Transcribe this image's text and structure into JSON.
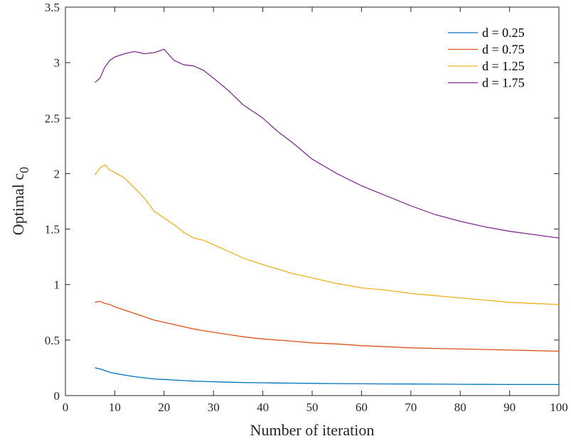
{
  "chart_data": {
    "type": "line",
    "xlabel": "Number of iteration",
    "ylabel": "Optimal c",
    "ylabel_subscript": "0",
    "xlim": [
      0,
      100
    ],
    "ylim": [
      0,
      3.5
    ],
    "xticks": [
      0,
      10,
      20,
      30,
      40,
      50,
      60,
      70,
      80,
      90,
      100
    ],
    "yticks": [
      0,
      0.5,
      1,
      1.5,
      2,
      2.5,
      3,
      3.5
    ],
    "ytick_labels": [
      "0",
      "0.5",
      "1",
      "1.5",
      "2",
      "2.5",
      "3",
      "3.5"
    ],
    "grid": false,
    "legend_position": "top-right",
    "x": [
      6,
      7,
      8,
      9,
      10,
      12,
      14,
      16,
      18,
      20,
      22,
      24,
      26,
      28,
      30,
      33,
      36,
      40,
      43,
      46,
      50,
      55,
      60,
      65,
      70,
      75,
      80,
      85,
      90,
      95,
      100
    ],
    "series": [
      {
        "name": "d = 0.25",
        "color": "#0072BD",
        "values": [
          0.25,
          0.24,
          0.225,
          0.21,
          0.2,
          0.185,
          0.17,
          0.16,
          0.15,
          0.145,
          0.14,
          0.135,
          0.13,
          0.128,
          0.125,
          0.12,
          0.118,
          0.115,
          0.113,
          0.112,
          0.11,
          0.108,
          0.106,
          0.105,
          0.104,
          0.103,
          0.102,
          0.101,
          0.1,
          0.1,
          0.1
        ]
      },
      {
        "name": "d = 0.75",
        "color": "#D95319",
        "values": [
          0.84,
          0.85,
          0.83,
          0.82,
          0.8,
          0.77,
          0.74,
          0.71,
          0.68,
          0.66,
          0.64,
          0.62,
          0.6,
          0.585,
          0.57,
          0.55,
          0.53,
          0.51,
          0.5,
          0.49,
          0.475,
          0.465,
          0.45,
          0.44,
          0.43,
          0.425,
          0.42,
          0.415,
          0.41,
          0.405,
          0.4
        ]
      },
      {
        "name": "d = 1.25",
        "color": "#EDB120",
        "values": [
          1.99,
          2.05,
          2.08,
          2.03,
          2.01,
          1.96,
          1.87,
          1.78,
          1.66,
          1.6,
          1.54,
          1.47,
          1.42,
          1.4,
          1.36,
          1.3,
          1.24,
          1.18,
          1.14,
          1.1,
          1.06,
          1.01,
          0.97,
          0.95,
          0.92,
          0.9,
          0.88,
          0.86,
          0.84,
          0.83,
          0.82
        ]
      },
      {
        "name": "d = 1.75",
        "color": "#7E2F8E",
        "values": [
          2.82,
          2.86,
          2.96,
          3.02,
          3.05,
          3.08,
          3.1,
          3.08,
          3.09,
          3.12,
          3.02,
          2.98,
          2.97,
          2.93,
          2.86,
          2.75,
          2.62,
          2.5,
          2.38,
          2.28,
          2.13,
          2.0,
          1.89,
          1.8,
          1.71,
          1.63,
          1.57,
          1.52,
          1.48,
          1.45,
          1.42
        ]
      }
    ]
  }
}
